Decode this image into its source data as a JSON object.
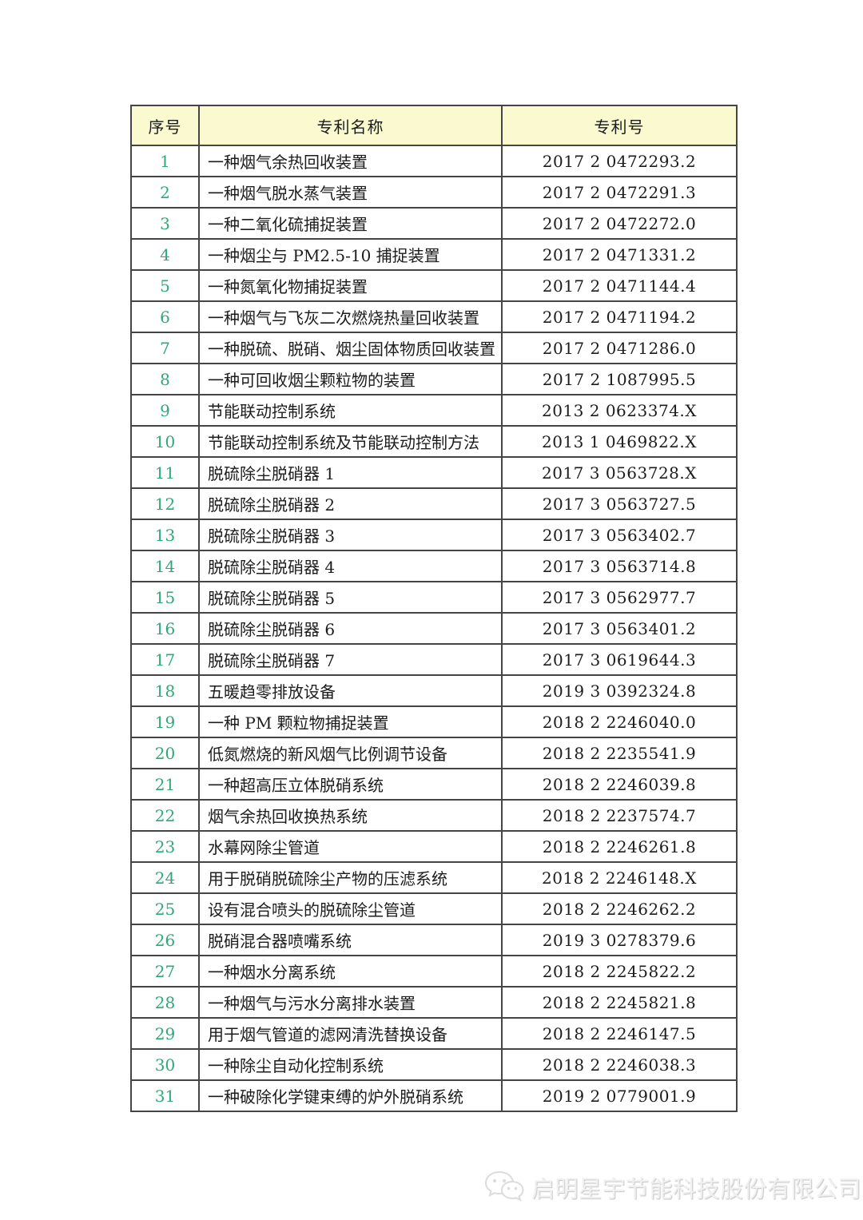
{
  "page": {
    "background": "#ffffff"
  },
  "table": {
    "header_bg": "#fbf9cf",
    "border_color": "#454545",
    "index_color": "#2ea876",
    "headers": {
      "index": "序号",
      "name": "专利名称",
      "number": "专利号"
    },
    "rows": [
      {
        "index": "1",
        "name": "一种烟气余热回收装置",
        "number": "2017 2 0472293.2"
      },
      {
        "index": "2",
        "name": "一种烟气脱水蒸气装置",
        "number": "2017 2 0472291.3"
      },
      {
        "index": "3",
        "name": "一种二氧化硫捕捉装置",
        "number": "2017 2 0472272.0"
      },
      {
        "index": "4",
        "name": "一种烟尘与 PM2.5-10 捕捉装置",
        "number": "2017 2 0471331.2"
      },
      {
        "index": "5",
        "name": "一种氮氧化物捕捉装置",
        "number": "2017 2 0471144.4"
      },
      {
        "index": "6",
        "name": "一种烟气与飞灰二次燃烧热量回收装置",
        "number": "2017 2 0471194.2"
      },
      {
        "index": "7",
        "name": "一种脱硫、脱硝、烟尘固体物质回收装置",
        "number": "2017 2 0471286.0"
      },
      {
        "index": "8",
        "name": "一种可回收烟尘颗粒物的装置",
        "number": "2017 2 1087995.5"
      },
      {
        "index": "9",
        "name": "节能联动控制系统",
        "number": "2013 2 0623374.X"
      },
      {
        "index": "10",
        "name": "节能联动控制系统及节能联动控制方法",
        "number": "2013 1 0469822.X"
      },
      {
        "index": "11",
        "name": "脱硫除尘脱硝器 1",
        "number": "2017 3 0563728.X"
      },
      {
        "index": "12",
        "name": "脱硫除尘脱硝器 2",
        "number": "2017 3 0563727.5"
      },
      {
        "index": "13",
        "name": "脱硫除尘脱硝器 3",
        "number": "2017 3 0563402.7"
      },
      {
        "index": "14",
        "name": "脱硫除尘脱硝器 4",
        "number": "2017 3 0563714.8"
      },
      {
        "index": "15",
        "name": "脱硫除尘脱硝器 5",
        "number": "2017 3 0562977.7"
      },
      {
        "index": "16",
        "name": "脱硫除尘脱硝器 6",
        "number": "2017 3 0563401.2"
      },
      {
        "index": "17",
        "name": "脱硫除尘脱硝器 7",
        "number": "2017 3 0619644.3"
      },
      {
        "index": "18",
        "name": "五暖趋零排放设备",
        "number": "2019 3 0392324.8"
      },
      {
        "index": "19",
        "name": "一种 PM 颗粒物捕捉装置",
        "number": "2018 2 2246040.0"
      },
      {
        "index": "20",
        "name": "低氮燃烧的新风烟气比例调节设备",
        "number": "2018 2 2235541.9"
      },
      {
        "index": "21",
        "name": "一种超高压立体脱硝系统",
        "number": "2018 2 2246039.8"
      },
      {
        "index": "22",
        "name": "烟气余热回收换热系统",
        "number": "2018 2 2237574.7"
      },
      {
        "index": "23",
        "name": "水幕网除尘管道",
        "number": "2018 2 2246261.8"
      },
      {
        "index": "24",
        "name": "用于脱硝脱硫除尘产物的压滤系统",
        "number": "2018 2 2246148.X"
      },
      {
        "index": "25",
        "name": "设有混合喷头的脱硫除尘管道",
        "number": "2018 2 2246262.2"
      },
      {
        "index": "26",
        "name": "脱硝混合器喷嘴系统",
        "number": "2019 3 0278379.6"
      },
      {
        "index": "27",
        "name": "一种烟水分离系统",
        "number": "2018 2 2245822.2"
      },
      {
        "index": "28",
        "name": "一种烟气与污水分离排水装置",
        "number": "2018 2 2245821.8"
      },
      {
        "index": "29",
        "name": "用于烟气管道的滤网清洗替换设备",
        "number": "2018 2 2246147.5"
      },
      {
        "index": "30",
        "name": "一种除尘自动化控制系统",
        "number": "2018 2 2246038.3"
      },
      {
        "index": "31",
        "name": "一种破除化学键束缚的炉外脱硝系统",
        "number": "2019 2 0779001.9"
      }
    ]
  },
  "footer": {
    "company": "启明星宇节能科技股份有限公司",
    "icon": "wechat-logo-icon",
    "watermark_color": "#f0f0f0"
  }
}
